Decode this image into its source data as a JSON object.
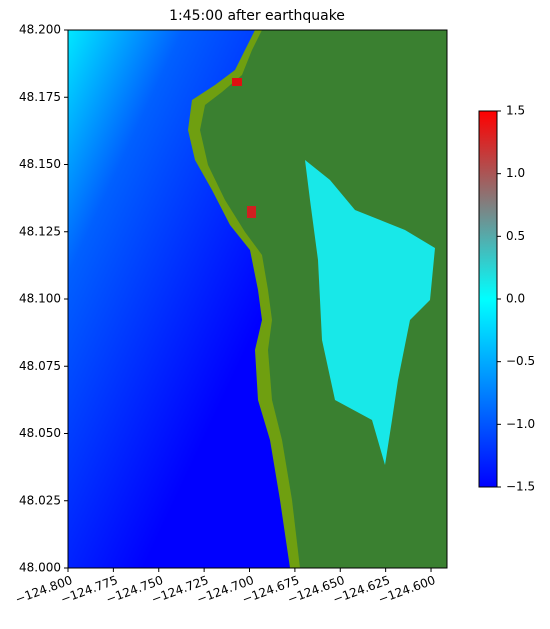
{
  "chart_data": {
    "type": "heatmap",
    "title": "1:45:00 after earthquake",
    "xlim": [
      -124.8,
      -124.5912
    ],
    "ylim": [
      48.0,
      48.2
    ],
    "xticks": [
      {
        "value": -124.8,
        "label": "−124.800"
      },
      {
        "value": -124.775,
        "label": "−124.775"
      },
      {
        "value": -124.75,
        "label": "−124.750"
      },
      {
        "value": -124.725,
        "label": "−124.725"
      },
      {
        "value": -124.7,
        "label": "−124.700"
      },
      {
        "value": -124.675,
        "label": "−124.675"
      },
      {
        "value": -124.65,
        "label": "−124.650"
      },
      {
        "value": -124.625,
        "label": "−124.625"
      },
      {
        "value": -124.6,
        "label": "−124.600"
      }
    ],
    "yticks": [
      {
        "value": 48.0,
        "label": "48.000"
      },
      48.025,
      {
        "value": 48.05,
        "label": "48.050"
      },
      48.075,
      {
        "value": 48.1,
        "label": "48.100"
      },
      48.125,
      {
        "value": 48.15,
        "label": "48.150"
      },
      48.175,
      {
        "value": 48.2,
        "label": "48.200"
      }
    ],
    "clim": [
      -1.5,
      1.5
    ],
    "cticks": [
      {
        "value": -1.5,
        "label": "−1.5"
      },
      {
        "value": -1.0,
        "label": "−1.0"
      },
      {
        "value": -0.5,
        "label": "−0.5"
      },
      {
        "value": 0.0,
        "label": "0.0"
      },
      0.5,
      {
        "value": 1.0,
        "label": "1.0"
      },
      1.5
    ],
    "colormap": [
      "#0000ff",
      "#0080ff",
      "#00ffff",
      "#808080",
      "#ff0000"
    ]
  }
}
